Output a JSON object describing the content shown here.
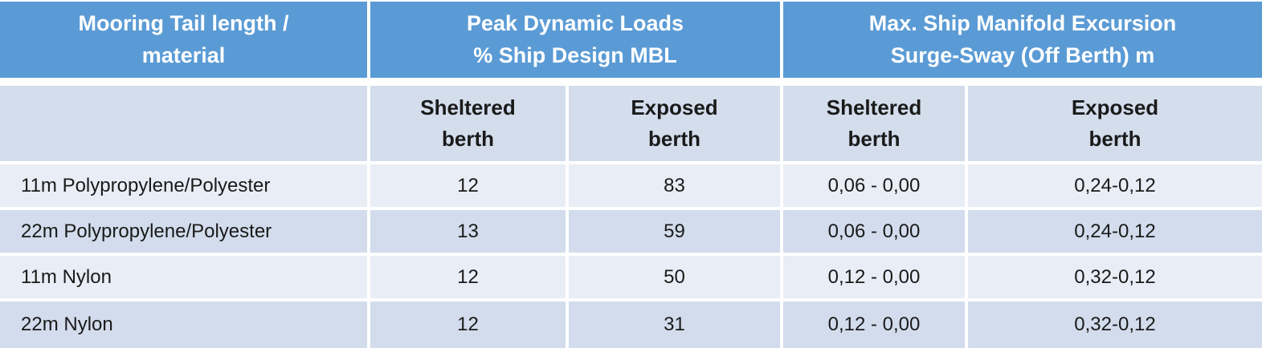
{
  "chart_data": {
    "type": "table",
    "column_groups": [
      {
        "label": "Mooring Tail length /\nmaterial",
        "span": 1
      },
      {
        "label": "Peak Dynamic Loads\n% Ship Design MBL",
        "span": 2
      },
      {
        "label": "Max. Ship Manifold Excursion\nSurge-Sway (Off Berth) m",
        "span": 2
      }
    ],
    "sub_columns": {
      "empty": "",
      "sheltered": "Sheltered\nberth",
      "exposed": "Exposed\nberth"
    },
    "rows": [
      {
        "material": "11m Polypropylene/Polyester",
        "peak_sheltered": "12",
        "peak_exposed": "83",
        "excursion_sheltered": "0,06 - 0,00",
        "excursion_exposed": "0,24-0,12"
      },
      {
        "material": "22m Polypropylene/Polyester",
        "peak_sheltered": "13",
        "peak_exposed": "59",
        "excursion_sheltered": "0,06 - 0,00",
        "excursion_exposed": "0,24-0,12"
      },
      {
        "material": "11m Nylon",
        "peak_sheltered": "12",
        "peak_exposed": "50",
        "excursion_sheltered": "0,12 - 0,00",
        "excursion_exposed": "0,32-0,12"
      },
      {
        "material": "22m Nylon",
        "peak_sheltered": "12",
        "peak_exposed": "31",
        "excursion_sheltered": "0,12 - 0,00",
        "excursion_exposed": "0,32-0,12"
      }
    ]
  },
  "colors": {
    "header_blue": "#5B9BD5",
    "header_text": "#FFFFFF",
    "subheader_bg": "#D3DDEC",
    "row_band_light": "#E9EDF6",
    "row_band_dark": "#D2DCEC",
    "body_text": "#1A1A1A",
    "gutter": "#FFFFFF"
  }
}
